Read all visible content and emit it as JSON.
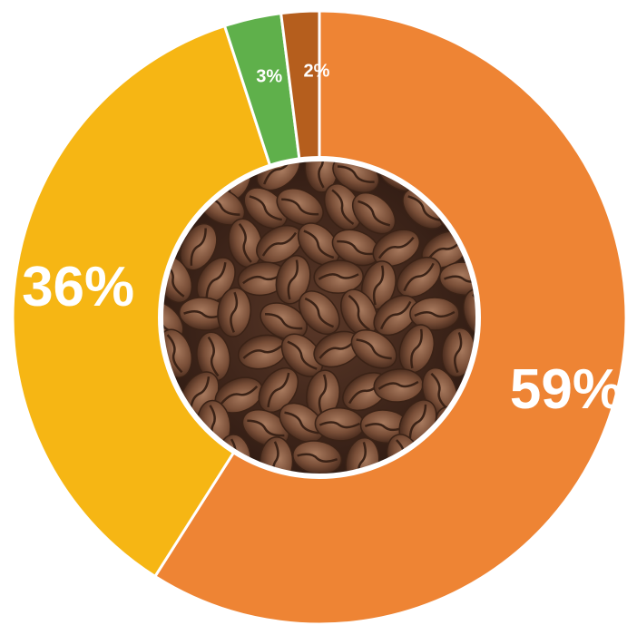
{
  "chart_data": {
    "type": "pie",
    "variant": "donut",
    "title": "",
    "center_image": "coffee-beans-photo",
    "series": [
      {
        "value": 59,
        "label": "59%",
        "color": "#ee8434"
      },
      {
        "value": 36,
        "label": "36%",
        "color": "#f6b614"
      },
      {
        "value": 3,
        "label": "3%",
        "color": "#5fb04b"
      },
      {
        "value": 2,
        "label": "2%",
        "color": "#b55e1d"
      }
    ],
    "start_angle_deg": 0,
    "direction": "clockwise",
    "legend": "none"
  }
}
